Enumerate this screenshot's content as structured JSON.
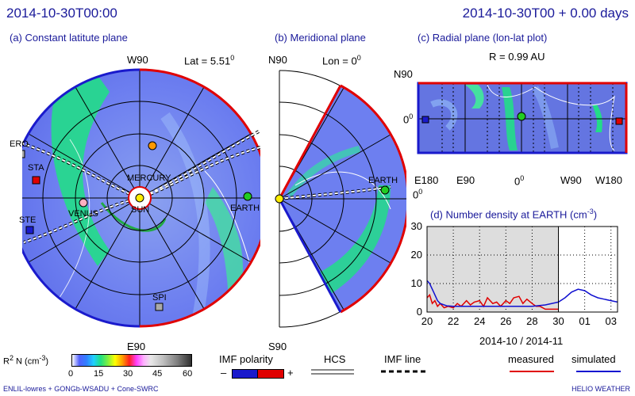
{
  "header": {
    "timestamp": "2014-10-30T00:00",
    "elapsed": "2014-10-30T00 + 0.00 days"
  },
  "panel_a": {
    "title": "(a) Constant latitute plane",
    "top_label": "W90",
    "bottom_label": "E90",
    "lat_label": "Lat = 5.51",
    "lat_sup": "0",
    "bodies": [
      "ERO",
      "STA",
      "VENUS",
      "STE",
      "MERCURY",
      "SUN",
      "EARTH",
      "SPI"
    ]
  },
  "panel_b": {
    "title": "(b) Meridional plane",
    "top_label": "N90",
    "bottom_label": "S90",
    "lon_label": "Lon = 0",
    "lon_sup": "0",
    "earth_label": "EARTH"
  },
  "panel_c": {
    "title": "(c) Radial plane (lon-lat plot)",
    "radius_label": "R = 0.99 AU",
    "y_labels": [
      "N90",
      "0"
    ],
    "y_sup": "0",
    "x_labels": [
      "E180",
      "E90",
      "0",
      "W90",
      "W180"
    ],
    "x_sup": "0"
  },
  "panel_d": {
    "title": "(d) Number density at EARTH (cm",
    "title_sup": "-3",
    "title_end": ")",
    "xlabel": "2014-10 / 2014-11"
  },
  "chart_data": {
    "type": "line",
    "title": "(d) Number density at EARTH (cm-3)",
    "xlabel": "2014-10 / 2014-11",
    "ylabel": "",
    "x_ticks": [
      "20",
      "22",
      "24",
      "26",
      "28",
      "30",
      "01",
      "03"
    ],
    "y_ticks": [
      0,
      10,
      20,
      30
    ],
    "ylim": [
      0,
      30
    ],
    "xlim_days": [
      20,
      34.5
    ],
    "shaded_until_day": 30,
    "series": [
      {
        "name": "measured",
        "color": "#e00000",
        "x": [
          20,
          20.2,
          20.4,
          20.6,
          20.8,
          21,
          21.3,
          21.6,
          22,
          22.3,
          22.6,
          23,
          23.3,
          23.6,
          24,
          24.3,
          24.6,
          25,
          25.3,
          25.6,
          26,
          26.3,
          26.6,
          27,
          27.3,
          27.6,
          28,
          28.3,
          28.6,
          29,
          29.3,
          29.6,
          30
        ],
        "y": [
          5,
          6,
          3,
          4,
          2,
          3,
          1.5,
          2,
          1.5,
          3,
          2,
          4,
          2.5,
          3.5,
          4,
          2,
          5,
          3,
          3.5,
          2,
          4,
          3,
          5,
          5.5,
          3,
          4.5,
          3,
          2,
          2,
          1,
          1,
          1,
          1
        ]
      },
      {
        "name": "simulated",
        "color": "#1010d0",
        "x": [
          20,
          20.2,
          20.5,
          20.8,
          21,
          21.5,
          22,
          22.5,
          23,
          23.5,
          24,
          25,
          26,
          27,
          28,
          29,
          30,
          30.5,
          31,
          31.5,
          32,
          32.5,
          33,
          33.5,
          34,
          34.5
        ],
        "y": [
          11,
          10,
          7,
          4,
          3,
          2.2,
          2,
          2,
          2,
          2,
          2,
          2,
          2,
          2,
          2,
          2.5,
          3.5,
          5,
          7,
          8,
          7.5,
          6,
          5,
          4.5,
          4,
          3.5
        ]
      }
    ]
  },
  "colorbar": {
    "label": "R",
    "label_sup1": "2",
    "label_mid": " N (cm",
    "label_sup2": "-3",
    "label_end": ")",
    "ticks": [
      "0",
      "15",
      "30",
      "45",
      "60"
    ]
  },
  "legend": {
    "imf_polarity": "IMF polarity",
    "minus": "–",
    "plus": "+",
    "hcs": "HCS",
    "imf_line": "IMF line",
    "measured": "measured",
    "simulated": "simulated"
  },
  "footer": {
    "left": "ENLIL-lowres + GONGb-WSADU + Cone-SWRC",
    "right": "HELIO  WEATHER"
  }
}
